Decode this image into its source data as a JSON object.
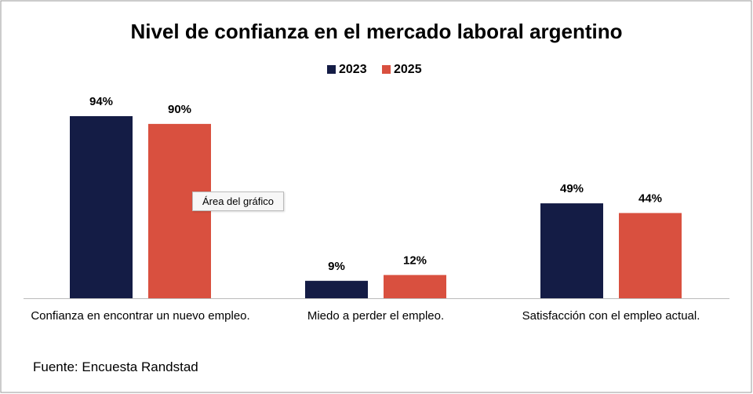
{
  "chart_data": {
    "type": "bar",
    "title": "Nivel de confianza en el mercado laboral argentino",
    "categories": [
      "Confianza en encontrar un nuevo empleo.",
      "Miedo a perder el empleo.",
      "Satisfacción con el empleo actual."
    ],
    "series": [
      {
        "name": "2023",
        "color": "#141c45",
        "values": [
          94,
          9,
          49
        ],
        "value_labels": [
          "94%",
          "9%",
          "49%"
        ]
      },
      {
        "name": "2025",
        "color": "#d9503f",
        "values": [
          90,
          12,
          44
        ],
        "value_labels": [
          "90%",
          "12%",
          "44%"
        ]
      }
    ],
    "source": "Fuente: Encuesta Randstad",
    "tooltip": "Área del gráfico"
  }
}
